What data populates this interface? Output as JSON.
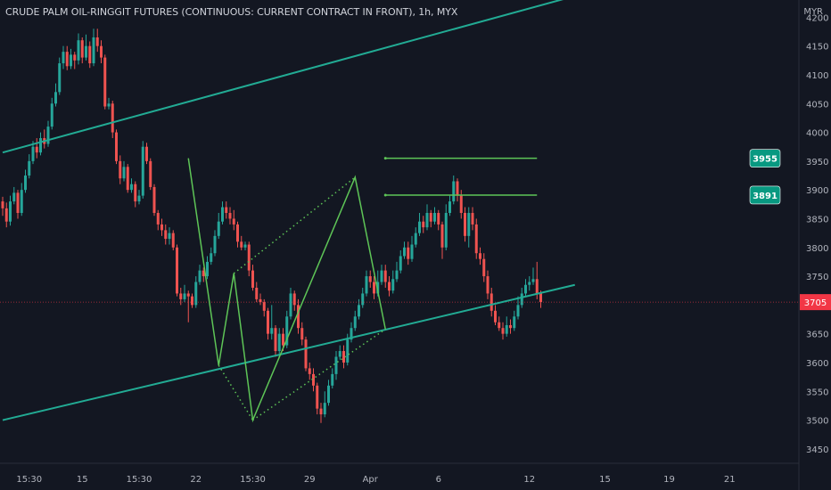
{
  "header": {
    "title": "CRUDE PALM OIL-RINGGIT FUTURES (CONTINUOUS: CURRENT CONTRACT IN FRONT), 1h, MYX",
    "currency": "MYR"
  },
  "colors": {
    "background": "#131722",
    "up": "#26a69a",
    "down": "#ef5350",
    "channel": "#22ab94",
    "pattern": "#5ec557",
    "axis_text": "#b2b5be",
    "last_price": "#f23645"
  },
  "chart_data": {
    "type": "candlestick",
    "timeframe": "1h",
    "exchange": "MYX",
    "x_ticks": [
      "15:30",
      "15",
      "15:30",
      "22",
      "15:30",
      "29",
      "Apr",
      "6",
      "12",
      "15",
      "19",
      "21"
    ],
    "y_ticks": [
      4200,
      4150,
      4100,
      4050,
      4000,
      3950,
      3900,
      3850,
      3800,
      3750,
      3700,
      3650,
      3600,
      3550,
      3500,
      3450
    ],
    "ylim": [
      3425,
      4230
    ],
    "last_price": 3705,
    "price_labels": [
      3955,
      3891
    ],
    "candles": [
      [
        3880,
        3868,
        3888,
        3855
      ],
      [
        3868,
        3845,
        3878,
        3835
      ],
      [
        3845,
        3880,
        3890,
        3838
      ],
      [
        3880,
        3895,
        3905,
        3875
      ],
      [
        3895,
        3860,
        3900,
        3850
      ],
      [
        3860,
        3900,
        3912,
        3855
      ],
      [
        3900,
        3925,
        3935,
        3895
      ],
      [
        3925,
        3950,
        3962,
        3920
      ],
      [
        3950,
        3975,
        3985,
        3945
      ],
      [
        3975,
        3965,
        3990,
        3955
      ],
      [
        3965,
        3990,
        4000,
        3960
      ],
      [
        3990,
        3980,
        4005,
        3972
      ],
      [
        3980,
        4010,
        4020,
        3975
      ],
      [
        4010,
        4050,
        4060,
        4005
      ],
      [
        4050,
        4070,
        4085,
        4045
      ],
      [
        4070,
        4120,
        4130,
        4065
      ],
      [
        4120,
        4140,
        4150,
        4110
      ],
      [
        4140,
        4115,
        4150,
        4108
      ],
      [
        4115,
        4135,
        4145,
        4110
      ],
      [
        4135,
        4125,
        4140,
        4110
      ],
      [
        4125,
        4160,
        4172,
        4118
      ],
      [
        4160,
        4130,
        4165,
        4120
      ],
      [
        4130,
        4150,
        4170,
        4125
      ],
      [
        4150,
        4120,
        4158,
        4112
      ],
      [
        4120,
        4165,
        4180,
        4115
      ],
      [
        4165,
        4150,
        4180,
        4140
      ],
      [
        4150,
        4130,
        4160,
        4120
      ],
      [
        4130,
        4045,
        4135,
        4040
      ],
      [
        4045,
        4050,
        4060,
        4040
      ],
      [
        4050,
        4000,
        4055,
        3990
      ],
      [
        4000,
        3950,
        4005,
        3945
      ],
      [
        3950,
        3920,
        3960,
        3910
      ],
      [
        3920,
        3940,
        3950,
        3915
      ],
      [
        3940,
        3900,
        3945,
        3895
      ],
      [
        3900,
        3910,
        3920,
        3895
      ],
      [
        3910,
        3880,
        3915,
        3870
      ],
      [
        3880,
        3890,
        3900,
        3875
      ],
      [
        3890,
        3975,
        3985,
        3885
      ],
      [
        3975,
        3950,
        3982,
        3945
      ],
      [
        3950,
        3905,
        3955,
        3900
      ],
      [
        3905,
        3860,
        3910,
        3855
      ],
      [
        3860,
        3840,
        3865,
        3830
      ],
      [
        3840,
        3830,
        3850,
        3820
      ],
      [
        3830,
        3815,
        3840,
        3805
      ],
      [
        3815,
        3825,
        3835,
        3805
      ],
      [
        3825,
        3800,
        3830,
        3795
      ],
      [
        3800,
        3720,
        3805,
        3715
      ],
      [
        3720,
        3710,
        3730,
        3700
      ],
      [
        3710,
        3720,
        3735,
        3705
      ],
      [
        3720,
        3715,
        3725,
        3670
      ],
      [
        3715,
        3700,
        3720,
        3695
      ],
      [
        3700,
        3740,
        3750,
        3695
      ],
      [
        3740,
        3760,
        3770,
        3735
      ],
      [
        3760,
        3750,
        3765,
        3740
      ],
      [
        3750,
        3775,
        3785,
        3745
      ],
      [
        3775,
        3790,
        3800,
        3770
      ],
      [
        3790,
        3820,
        3830,
        3785
      ],
      [
        3820,
        3845,
        3860,
        3815
      ],
      [
        3845,
        3870,
        3880,
        3840
      ],
      [
        3870,
        3860,
        3880,
        3850
      ],
      [
        3860,
        3850,
        3870,
        3840
      ],
      [
        3850,
        3840,
        3865,
        3830
      ],
      [
        3840,
        3810,
        3845,
        3800
      ],
      [
        3810,
        3800,
        3820,
        3795
      ],
      [
        3800,
        3805,
        3810,
        3795
      ],
      [
        3805,
        3760,
        3810,
        3750
      ],
      [
        3760,
        3730,
        3770,
        3725
      ],
      [
        3730,
        3710,
        3740,
        3705
      ],
      [
        3710,
        3705,
        3720,
        3700
      ],
      [
        3705,
        3690,
        3710,
        3680
      ],
      [
        3690,
        3650,
        3695,
        3640
      ],
      [
        3650,
        3660,
        3700,
        3640
      ],
      [
        3660,
        3620,
        3665,
        3610
      ],
      [
        3620,
        3650,
        3660,
        3610
      ],
      [
        3650,
        3630,
        3660,
        3620
      ],
      [
        3630,
        3680,
        3690,
        3625
      ],
      [
        3680,
        3720,
        3730,
        3675
      ],
      [
        3720,
        3700,
        3725,
        3690
      ],
      [
        3700,
        3660,
        3710,
        3650
      ],
      [
        3660,
        3640,
        3670,
        3630
      ],
      [
        3640,
        3590,
        3645,
        3585
      ],
      [
        3590,
        3580,
        3600,
        3570
      ],
      [
        3580,
        3560,
        3590,
        3550
      ],
      [
        3560,
        3520,
        3565,
        3510
      ],
      [
        3520,
        3510,
        3530,
        3495
      ],
      [
        3510,
        3530,
        3550,
        3505
      ],
      [
        3530,
        3560,
        3570,
        3525
      ],
      [
        3560,
        3580,
        3590,
        3555
      ],
      [
        3580,
        3610,
        3620,
        3570
      ],
      [
        3610,
        3620,
        3630,
        3605
      ],
      [
        3620,
        3600,
        3630,
        3590
      ],
      [
        3600,
        3640,
        3650,
        3595
      ],
      [
        3640,
        3660,
        3670,
        3635
      ],
      [
        3660,
        3680,
        3690,
        3655
      ],
      [
        3680,
        3700,
        3710,
        3675
      ],
      [
        3700,
        3720,
        3730,
        3695
      ],
      [
        3720,
        3750,
        3760,
        3715
      ],
      [
        3750,
        3740,
        3760,
        3730
      ],
      [
        3740,
        3720,
        3750,
        3710
      ],
      [
        3720,
        3740,
        3760,
        3715
      ],
      [
        3740,
        3760,
        3770,
        3735
      ],
      [
        3760,
        3740,
        3770,
        3730
      ],
      [
        3740,
        3725,
        3750,
        3715
      ],
      [
        3725,
        3745,
        3760,
        3720
      ],
      [
        3745,
        3760,
        3775,
        3740
      ],
      [
        3760,
        3785,
        3795,
        3755
      ],
      [
        3785,
        3800,
        3810,
        3780
      ],
      [
        3800,
        3780,
        3810,
        3770
      ],
      [
        3780,
        3805,
        3820,
        3775
      ],
      [
        3805,
        3825,
        3835,
        3800
      ],
      [
        3825,
        3845,
        3860,
        3820
      ],
      [
        3845,
        3835,
        3855,
        3825
      ],
      [
        3835,
        3860,
        3875,
        3830
      ],
      [
        3860,
        3845,
        3865,
        3835
      ],
      [
        3845,
        3860,
        3870,
        3840
      ],
      [
        3860,
        3840,
        3865,
        3830
      ],
      [
        3840,
        3800,
        3845,
        3780
      ],
      [
        3800,
        3860,
        3875,
        3795
      ],
      [
        3860,
        3880,
        3890,
        3855
      ],
      [
        3880,
        3915,
        3925,
        3875
      ],
      [
        3915,
        3890,
        3920,
        3880
      ],
      [
        3890,
        3860,
        3900,
        3850
      ],
      [
        3860,
        3820,
        3870,
        3810
      ],
      [
        3820,
        3860,
        3870,
        3800
      ],
      [
        3860,
        3840,
        3870,
        3830
      ],
      [
        3840,
        3790,
        3850,
        3780
      ],
      [
        3790,
        3780,
        3800,
        3770
      ],
      [
        3780,
        3750,
        3790,
        3740
      ],
      [
        3750,
        3720,
        3760,
        3710
      ],
      [
        3720,
        3690,
        3730,
        3680
      ],
      [
        3690,
        3670,
        3700,
        3665
      ],
      [
        3670,
        3660,
        3680,
        3655
      ],
      [
        3660,
        3650,
        3670,
        3640
      ],
      [
        3650,
        3665,
        3680,
        3645
      ],
      [
        3665,
        3660,
        3675,
        3650
      ],
      [
        3660,
        3680,
        3690,
        3655
      ],
      [
        3680,
        3700,
        3715,
        3675
      ],
      [
        3700,
        3720,
        3730,
        3695
      ],
      [
        3720,
        3735,
        3745,
        3715
      ],
      [
        3735,
        3740,
        3750,
        3725
      ],
      [
        3740,
        3745,
        3765,
        3735
      ],
      [
        3745,
        3720,
        3775,
        3710
      ],
      [
        3720,
        3705,
        3725,
        3695
      ]
    ],
    "channel": {
      "upper": [
        {
          "x": 0,
          "y": 3965
        },
        {
          "x": 151,
          "y": 4237
        }
      ],
      "lower": [
        {
          "x": 0,
          "y": 3500
        },
        {
          "x": 151,
          "y": 3735
        }
      ]
    },
    "pattern": {
      "zigzag": [
        {
          "x": 49,
          "y": 3955
        },
        {
          "x": 57,
          "y": 3595
        },
        {
          "x": 61,
          "y": 3755
        },
        {
          "x": 66,
          "y": 3500
        },
        {
          "x": 93,
          "y": 3922
        },
        {
          "x": 101,
          "y": 3658
        }
      ],
      "dotted": [
        [
          {
            "x": 57,
            "y": 3595
          },
          {
            "x": 66,
            "y": 3500
          }
        ],
        [
          {
            "x": 61,
            "y": 3755
          },
          {
            "x": 93,
            "y": 3922
          }
        ],
        [
          {
            "x": 66,
            "y": 3500
          },
          {
            "x": 101,
            "y": 3658
          }
        ]
      ],
      "targets": [
        {
          "value": 3955,
          "from_x": 101,
          "to_x": 141
        },
        {
          "value": 3891,
          "from_x": 101,
          "to_x": 141
        }
      ]
    }
  }
}
